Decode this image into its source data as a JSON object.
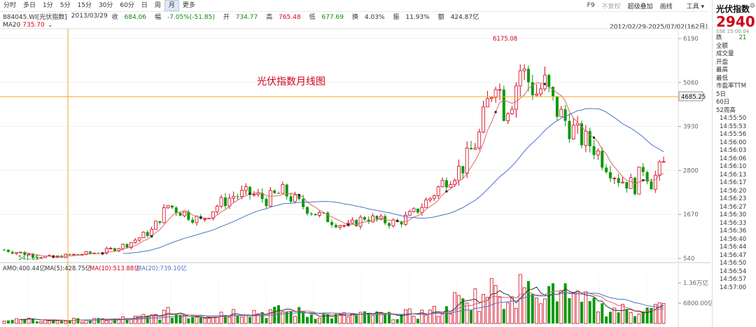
{
  "toolbar": {
    "periods": [
      "分时",
      "多日",
      "1分",
      "5分",
      "15分",
      "30分",
      "60分",
      "日",
      "周",
      "月",
      "更多"
    ],
    "active_period": "月",
    "right_items": [
      "F9",
      "不复权",
      "超级叠加",
      "画线",
      "工具"
    ]
  },
  "info": {
    "code": "884045.WI[光伏指数]",
    "date": "2013/03/29",
    "close_label": "收",
    "close": "684.06",
    "change_label": "幅",
    "change": "-7.05%(-51.85)",
    "open_label": "开",
    "open": "734.77",
    "high_label": "高",
    "high": "765.48",
    "low_label": "低",
    "low": "677.69",
    "turnover_label": "换",
    "turnover": "4.03%",
    "amplitude_label": "振",
    "amplitude": "11.93%",
    "amount_label": "额",
    "amount": "424.87亿"
  },
  "ma_header": {
    "label": "MA20",
    "value": "735.70"
  },
  "date_range": "2012/02/29-2025/07/02(162月)",
  "chart_title": "光伏指数月线图",
  "axis": {
    "price_ticks": [
      "6190",
      "5060",
      "3930",
      "2800",
      "1670",
      "540"
    ],
    "crosshair_price": "4685.25",
    "max_label": "6175.08",
    "min_label": "541.65",
    "volume_ticks": [
      "1.36万亿",
      "6800.00亿"
    ]
  },
  "volume_header": {
    "amo_label": "AMO:",
    "amo": "400.44亿",
    "ma5_label": "MA(5):",
    "ma5": "428.75亿",
    "ma10_label": "MA(10):",
    "ma10": "513.88亿",
    "ma20_label": "MA(20):",
    "ma20": "739.10亿"
  },
  "colors": {
    "up": "#d0021b",
    "down": "#079a07",
    "ma_red": "#e06666",
    "ma_blue": "#4a74c9",
    "crosshair": "#f5a623"
  },
  "right_panel": {
    "name": "光伏指数",
    "price": "2940",
    "sub": "SSE 15:00:04",
    "rows": [
      {
        "label": "跌",
        "value": "21"
      },
      {
        "label": "全额",
        "value": ""
      },
      {
        "label": "成交量",
        "value": ""
      },
      {
        "label": "开盘",
        "value": ""
      },
      {
        "label": "最高",
        "value": ""
      },
      {
        "label": "最低",
        "value": ""
      },
      {
        "label": "市盈率TTM",
        "value": ""
      },
      {
        "label": "5日",
        "value": ""
      },
      {
        "label": "60日",
        "value": ""
      },
      {
        "label": "52周高",
        "value": ""
      }
    ],
    "times": [
      "14:55:50",
      "14:55:53",
      "14:55:56",
      "14:56:00",
      "14:56:03",
      "14:56:06",
      "14:56:10",
      "14:56:13",
      "14:56:17",
      "14:56:20",
      "14:56:23",
      "14:56:27",
      "14:56:30",
      "14:56:33",
      "14:56:36",
      "14:56:40",
      "14:56:44",
      "14:56:47",
      "14:56:50",
      "14:56:54",
      "14:56:57",
      "14:57:00"
    ]
  }
}
